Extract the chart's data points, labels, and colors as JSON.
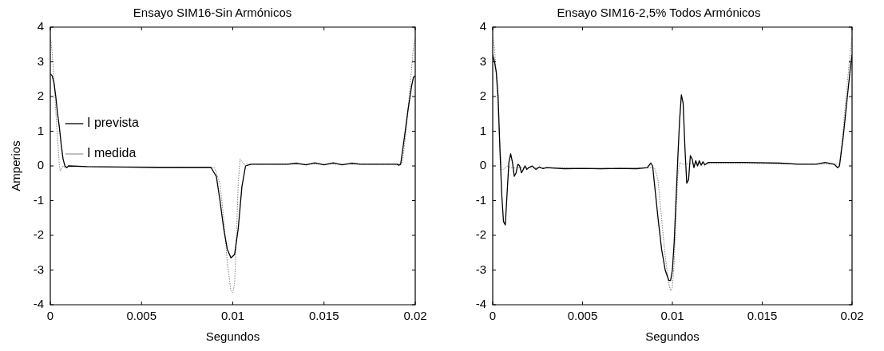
{
  "chart_data": [
    {
      "type": "line",
      "title": "Ensayo SIM16-Sin Armónicos",
      "xlabel": "Segundos",
      "ylabel": "Amperios",
      "xlim": [
        0,
        0.02
      ],
      "xticks": [
        0,
        0.005,
        0.01,
        0.015,
        0.02
      ],
      "ylim": [
        -4,
        4
      ],
      "yticks": [
        -4,
        -3,
        -2,
        -1,
        0,
        1,
        2,
        3,
        4
      ],
      "grid": false,
      "legend": "top",
      "marker": "none",
      "series": [
        {
          "name": "I prevista",
          "color": "#000000",
          "line_style": "solid",
          "x": [
            0,
            0.0001,
            0.0002,
            0.0003,
            0.0004,
            0.0005,
            0.0006,
            0.0007,
            0.0008,
            0.0009,
            0.001,
            0.002,
            0.004,
            0.006,
            0.008,
            0.0088,
            0.0091,
            0.0093,
            0.0095,
            0.0097,
            0.0099,
            0.0101,
            0.0103,
            0.0105,
            0.0107,
            0.011,
            0.013,
            0.0135,
            0.014,
            0.0145,
            0.015,
            0.0155,
            0.016,
            0.0165,
            0.017,
            0.019,
            0.0191,
            0.0192,
            0.0194,
            0.0196,
            0.0198,
            0.0199,
            0.02
          ],
          "values": [
            2.65,
            2.6,
            2.4,
            2.0,
            1.5,
            1.1,
            0.6,
            0.2,
            0.0,
            -0.05,
            0,
            -0.02,
            -0.03,
            -0.04,
            -0.04,
            -0.04,
            -0.3,
            -1.0,
            -1.8,
            -2.4,
            -2.65,
            -2.55,
            -1.8,
            -0.6,
            0,
            0.05,
            0.05,
            0.08,
            0.03,
            0.09,
            0.03,
            0.09,
            0.03,
            0.08,
            0.05,
            0.05,
            0.02,
            0.05,
            0.8,
            1.6,
            2.3,
            2.55,
            2.6
          ]
        },
        {
          "name": "I medida",
          "color": "#808080",
          "line_style": "dotted",
          "x": [
            0,
            0.0001,
            0.0002,
            0.0003,
            0.0004,
            0.0005,
            0.00055,
            0.0007,
            0.0008,
            0.001,
            0.003,
            0.006,
            0.009,
            0.0093,
            0.0095,
            0.0097,
            0.0099,
            0.01,
            0.0101,
            0.0102,
            0.0103,
            0.0104,
            0.0106,
            0.012,
            0.019,
            0.0193,
            0.0195,
            0.0197,
            0.0199,
            0.02
          ],
          "values": [
            3.7,
            3.3,
            2.5,
            1.6,
            0.8,
            0.0,
            -0.15,
            0.0,
            -0.05,
            0,
            -0.03,
            -0.05,
            -0.05,
            -0.5,
            -1.5,
            -2.8,
            -3.6,
            -3.65,
            -3.4,
            -2.0,
            -0.5,
            0.2,
            0.05,
            0.05,
            0.05,
            0.1,
            1.0,
            2.2,
            3.4,
            3.7
          ]
        }
      ]
    },
    {
      "type": "line",
      "title": "Ensayo SIM16-2,5% Todos Armónicos",
      "xlabel": "Segundos",
      "xlim": [
        0,
        0.02
      ],
      "xticks": [
        0,
        0.005,
        0.01,
        0.015,
        0.02
      ],
      "ylim": [
        -4,
        4
      ],
      "yticks": [
        -4,
        -3,
        -2,
        -1,
        0,
        1,
        2,
        3,
        4
      ],
      "grid": false,
      "marker": "none",
      "series": [
        {
          "color": "#000000",
          "line_style": "solid",
          "x": [
            0,
            0.0001,
            0.0002,
            0.0003,
            0.0004,
            0.0005,
            0.0006,
            0.0007,
            0.0008,
            0.0009,
            0.001,
            0.0011,
            0.0012,
            0.0013,
            0.0014,
            0.0015,
            0.0016,
            0.0017,
            0.0018,
            0.0019,
            0.002,
            0.0022,
            0.0024,
            0.0026,
            0.0028,
            0.003,
            0.004,
            0.005,
            0.006,
            0.007,
            0.008,
            0.0086,
            0.0088,
            0.0089,
            0.009,
            0.0092,
            0.0094,
            0.0096,
            0.0098,
            0.0099,
            0.01,
            0.0101,
            0.0102,
            0.0103,
            0.0104,
            0.0105,
            0.0106,
            0.0107,
            0.0108,
            0.0109,
            0.011,
            0.0111,
            0.0112,
            0.0113,
            0.0114,
            0.0115,
            0.0116,
            0.0117,
            0.0118,
            0.012,
            0.014,
            0.016,
            0.017,
            0.018,
            0.0185,
            0.019,
            0.0192,
            0.0193,
            0.0195,
            0.0197,
            0.0199,
            0.02
          ],
          "values": [
            3.2,
            3.0,
            2.7,
            2.0,
            0.5,
            -0.8,
            -1.6,
            -1.7,
            -0.8,
            0.1,
            0.35,
            0.1,
            -0.3,
            -0.2,
            0.05,
            0.0,
            -0.2,
            -0.1,
            0.0,
            -0.1,
            -0.05,
            0.0,
            -0.1,
            -0.03,
            -0.08,
            -0.05,
            -0.08,
            -0.07,
            -0.08,
            -0.07,
            -0.08,
            -0.05,
            0.08,
            0.0,
            -0.5,
            -1.5,
            -2.4,
            -3.0,
            -3.3,
            -3.3,
            -3.0,
            -2.2,
            -1.0,
            0.2,
            1.3,
            2.05,
            1.8,
            0.5,
            -0.5,
            -0.4,
            0.3,
            0.2,
            -0.05,
            0.15,
            0.0,
            0.15,
            0.02,
            0.12,
            0.03,
            0.1,
            0.1,
            0.08,
            0.05,
            0.05,
            0.1,
            0.05,
            -0.05,
            0.0,
            0.8,
            1.8,
            2.8,
            3.2
          ]
        },
        {
          "color": "#808080",
          "line_style": "dotted",
          "x": [
            0,
            0.0001,
            0.0002,
            0.0003,
            0.0004,
            0.0005,
            0.0006,
            0.0008,
            0.001,
            0.003,
            0.006,
            0.009,
            0.0092,
            0.0094,
            0.0096,
            0.0098,
            0.0099,
            0.01,
            0.0101,
            0.0102,
            0.0103,
            0.0104,
            0.0106,
            0.013,
            0.019,
            0.0193,
            0.0195,
            0.0197,
            0.0199,
            0.02
          ],
          "values": [
            3.7,
            3.4,
            2.6,
            1.6,
            0.6,
            -0.1,
            -0.1,
            0.0,
            -0.05,
            -0.05,
            -0.08,
            -0.05,
            -0.4,
            -1.5,
            -2.6,
            -3.4,
            -3.6,
            -3.5,
            -2.8,
            -1.5,
            -0.3,
            0.1,
            0.05,
            0.08,
            0.05,
            0.05,
            1.0,
            2.2,
            3.3,
            3.7
          ]
        }
      ]
    }
  ]
}
